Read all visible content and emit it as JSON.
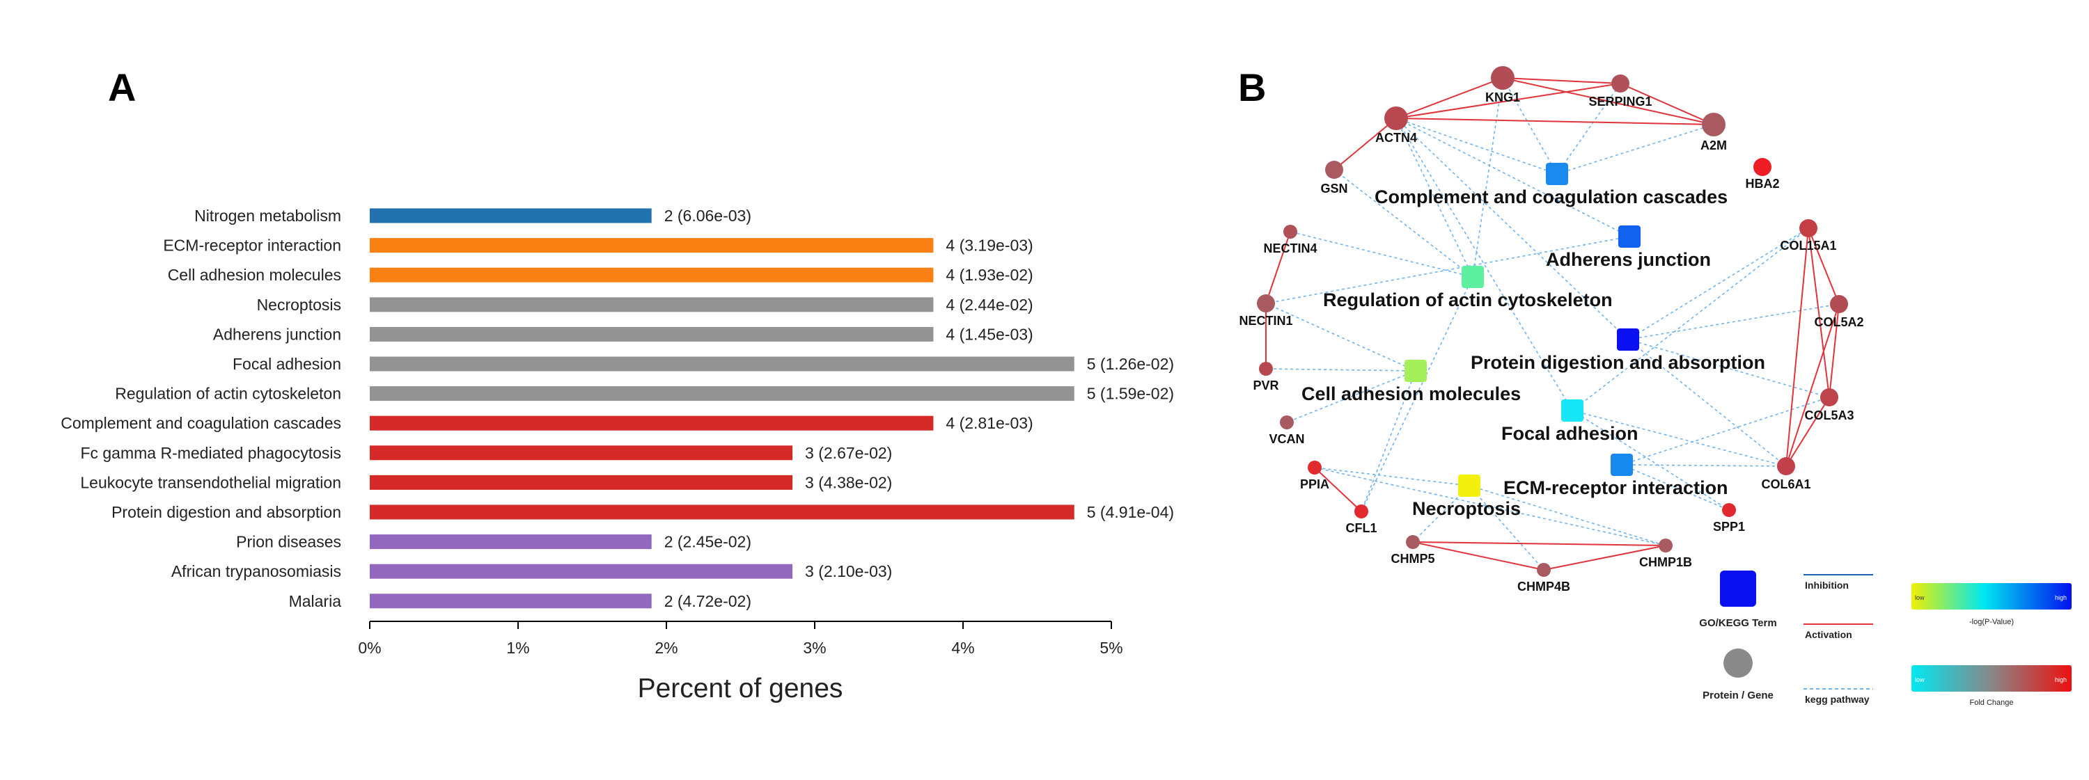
{
  "panel_a": {
    "label": "A",
    "chart_data": {
      "type": "bar",
      "orientation": "horizontal",
      "xlabel": "Percent of genes",
      "xlim": [
        0,
        5
      ],
      "xticks": [
        "0%",
        "1%",
        "2%",
        "3%",
        "4%",
        "5%"
      ],
      "bars": [
        {
          "category": "Nitrogen metabolism",
          "percent": 1.9,
          "label": "2 (6.06e-03)",
          "color": "#2372b0"
        },
        {
          "category": "ECM-receptor interaction",
          "percent": 3.8,
          "label": "4 (3.19e-03)",
          "color": "#fb8013"
        },
        {
          "category": "Cell adhesion molecules",
          "percent": 3.8,
          "label": "4 (1.93e-02)",
          "color": "#fb8013"
        },
        {
          "category": "Necroptosis",
          "percent": 3.8,
          "label": "4 (2.44e-02)",
          "color": "#939393"
        },
        {
          "category": "Adherens junction",
          "percent": 3.8,
          "label": "4 (1.45e-03)",
          "color": "#939393"
        },
        {
          "category": "Focal adhesion",
          "percent": 4.75,
          "label": "5 (1.26e-02)",
          "color": "#939393"
        },
        {
          "category": "Regulation of actin cytoskeleton",
          "percent": 4.75,
          "label": "5 (1.59e-02)",
          "color": "#939393"
        },
        {
          "category": "Complement and coagulation cascades",
          "percent": 3.8,
          "label": "4 (2.81e-03)",
          "color": "#d62a28"
        },
        {
          "category": "Fc gamma R-mediated phagocytosis",
          "percent": 2.85,
          "label": "3 (2.67e-02)",
          "color": "#d62a28"
        },
        {
          "category": "Leukocyte transendothelial migration",
          "percent": 2.85,
          "label": "3 (4.38e-02)",
          "color": "#d62a28"
        },
        {
          "category": "Protein digestion and absorption",
          "percent": 4.75,
          "label": "5 (4.91e-04)",
          "color": "#d62a28"
        },
        {
          "category": "Prion diseases",
          "percent": 1.9,
          "label": "2 (2.45e-02)",
          "color": "#9168bd"
        },
        {
          "category": "African trypanosomiasis",
          "percent": 2.85,
          "label": "3 (2.10e-03)",
          "color": "#9168bd"
        },
        {
          "category": "Malaria",
          "percent": 1.9,
          "label": "2 (4.72e-02)",
          "color": "#9168bd"
        }
      ]
    }
  },
  "panel_b": {
    "label": "B",
    "term_nodes": [
      {
        "id": "complement",
        "label": "Complement and coagulation cascades",
        "color": "#1a8aee"
      },
      {
        "id": "adherens",
        "label": "Adherens junction",
        "color": "#1262f0"
      },
      {
        "id": "actin",
        "label": "Regulation of actin cytoskeleton",
        "color": "#5cf0a0"
      },
      {
        "id": "protein",
        "label": "Protein digestion and absorption",
        "color": "#0a10f0"
      },
      {
        "id": "cam",
        "label": "Cell adhesion molecules",
        "color": "#a4f05a"
      },
      {
        "id": "focal",
        "label": "Focal adhesion",
        "color": "#16e6f6"
      },
      {
        "id": "ecm",
        "label": "ECM-receptor interaction",
        "color": "#1688ee"
      },
      {
        "id": "necro",
        "label": "Necroptosis",
        "color": "#f2f00c"
      }
    ],
    "gene_nodes": [
      {
        "id": "KNG1",
        "label": "KNG1",
        "color": "#b24d55",
        "size": "large"
      },
      {
        "id": "SERPING1",
        "label": "SERPING1",
        "color": "#b05058",
        "size": "small"
      },
      {
        "id": "ACTN4",
        "label": "ACTN4",
        "color": "#b94750",
        "size": "large"
      },
      {
        "id": "A2M",
        "label": "A2M",
        "color": "#a85a60",
        "size": "large"
      },
      {
        "id": "GSN",
        "label": "GSN",
        "color": "#a85a60",
        "size": "small"
      },
      {
        "id": "HBA2",
        "label": "HBA2",
        "color": "#ee1e26",
        "size": "small"
      },
      {
        "id": "NECTIN4",
        "label": "NECTIN4",
        "color": "#b05058",
        "size": "tiny"
      },
      {
        "id": "COL15A1",
        "label": "COL15A1",
        "color": "#c53d45",
        "size": "small"
      },
      {
        "id": "NECTIN1",
        "label": "NECTIN1",
        "color": "#a85a60",
        "size": "small"
      },
      {
        "id": "COL5A2",
        "label": "COL5A2",
        "color": "#b24d55",
        "size": "small"
      },
      {
        "id": "PVR",
        "label": "PVR",
        "color": "#b5494f",
        "size": "tiny"
      },
      {
        "id": "COL5A3",
        "label": "COL5A3",
        "color": "#bd444b",
        "size": "small"
      },
      {
        "id": "VCAN",
        "label": "VCAN",
        "color": "#a85a60",
        "size": "tiny"
      },
      {
        "id": "COL6A1",
        "label": "COL6A1",
        "color": "#c2404a",
        "size": "small"
      },
      {
        "id": "PPIA",
        "label": "PPIA",
        "color": "#e02a30",
        "size": "tiny"
      },
      {
        "id": "CFL1",
        "label": "CFL1",
        "color": "#e02a30",
        "size": "tiny"
      },
      {
        "id": "SPP1",
        "label": "SPP1",
        "color": "#e02a30",
        "size": "tiny"
      },
      {
        "id": "CHMP5",
        "label": "CHMP5",
        "color": "#a85a60",
        "size": "tiny"
      },
      {
        "id": "CHMP4B",
        "label": "CHMP4B",
        "color": "#a85a60",
        "size": "tiny"
      },
      {
        "id": "CHMP1B",
        "label": "CHMP1B",
        "color": "#a85a60",
        "size": "tiny"
      }
    ],
    "activation_edges": [
      [
        "KNG1",
        "SERPING1"
      ],
      [
        "KNG1",
        "ACTN4"
      ],
      [
        "KNG1",
        "A2M"
      ],
      [
        "SERPING1",
        "ACTN4"
      ],
      [
        "SERPING1",
        "A2M"
      ],
      [
        "ACTN4",
        "A2M"
      ],
      [
        "ACTN4",
        "GSN"
      ],
      [
        "NECTIN4",
        "NECTIN1"
      ],
      [
        "NECTIN1",
        "PVR"
      ],
      [
        "COL15A1",
        "COL5A2"
      ],
      [
        "COL15A1",
        "COL5A3"
      ],
      [
        "COL15A1",
        "COL6A1"
      ],
      [
        "COL5A2",
        "COL5A3"
      ],
      [
        "COL5A2",
        "COL6A1"
      ],
      [
        "COL5A3",
        "COL6A1"
      ],
      [
        "PPIA",
        "CFL1"
      ],
      [
        "CHMP5",
        "CHMP4B"
      ],
      [
        "CHMP5",
        "CHMP1B"
      ],
      [
        "CHMP4B",
        "CHMP1B"
      ]
    ],
    "kegg_edges": [
      [
        "complement",
        "KNG1"
      ],
      [
        "complement",
        "SERPING1"
      ],
      [
        "complement",
        "A2M"
      ],
      [
        "complement",
        "ACTN4"
      ],
      [
        "adherens",
        "ACTN4"
      ],
      [
        "adherens",
        "NECTIN1"
      ],
      [
        "actin",
        "ACTN4"
      ],
      [
        "actin",
        "GSN"
      ],
      [
        "actin",
        "KNG1"
      ],
      [
        "actin",
        "CFL1"
      ],
      [
        "actin",
        "NECTIN4"
      ],
      [
        "protein",
        "COL15A1"
      ],
      [
        "protein",
        "COL5A2"
      ],
      [
        "protein",
        "COL5A3"
      ],
      [
        "protein",
        "COL6A1"
      ],
      [
        "protein",
        "ACTN4"
      ],
      [
        "cam",
        "NECTIN1"
      ],
      [
        "cam",
        "PVR"
      ],
      [
        "cam",
        "VCAN"
      ],
      [
        "cam",
        "CFL1"
      ],
      [
        "focal",
        "ACTN4"
      ],
      [
        "focal",
        "COL6A1"
      ],
      [
        "focal",
        "COL15A1"
      ],
      [
        "focal",
        "SPP1"
      ],
      [
        "ecm",
        "COL6A1"
      ],
      [
        "ecm",
        "SPP1"
      ],
      [
        "ecm",
        "COL5A3"
      ],
      [
        "necro",
        "PPIA"
      ],
      [
        "necro",
        "CHMP4B"
      ],
      [
        "necro",
        "CHMP1B"
      ],
      [
        "necro",
        "CHMP5"
      ],
      [
        "PPIA",
        "CHMP1B"
      ]
    ],
    "legend": {
      "term_label": "GO/KEGG Term",
      "gene_label": "Protein / Gene",
      "inhibition_label": "Inhibition",
      "activation_label": "Activation",
      "kegg_label": "kegg pathway",
      "pvalue_label": "-log(P-Value)",
      "fold_label": "Fold Change",
      "low": "low",
      "high": "high",
      "term_color": "#0a10f0",
      "gene_color": "#8a8a8a",
      "inhibition_color": "#2060b0",
      "activation_color": "#e0343a",
      "kegg_color": "#70b4ee",
      "pvalue_gradient": [
        "#f0f000",
        "#00e8f0",
        "#0010f0"
      ],
      "fold_gradient": [
        "#00e8f0",
        "#888888",
        "#ee1010"
      ]
    }
  }
}
